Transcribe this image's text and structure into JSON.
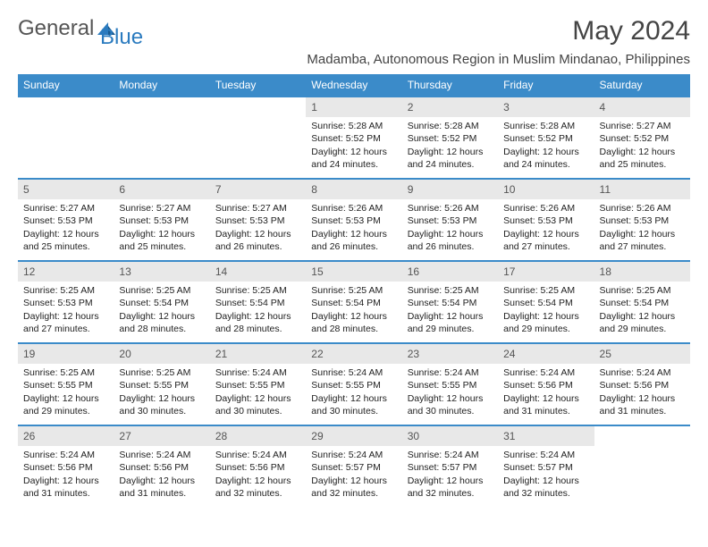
{
  "logo": {
    "text1": "General",
    "text2": "Blue"
  },
  "title": "May 2024",
  "subtitle": "Madamba, Autonomous Region in Muslim Mindanao, Philippines",
  "colors": {
    "header_bg": "#3b8bc9",
    "daynum_bg": "#e8e8e8",
    "border": "#3b8bc9"
  },
  "weekdays": [
    "Sunday",
    "Monday",
    "Tuesday",
    "Wednesday",
    "Thursday",
    "Friday",
    "Saturday"
  ],
  "weeks": [
    [
      {
        "n": "",
        "sr": "",
        "ss": "",
        "dl": ""
      },
      {
        "n": "",
        "sr": "",
        "ss": "",
        "dl": ""
      },
      {
        "n": "",
        "sr": "",
        "ss": "",
        "dl": ""
      },
      {
        "n": "1",
        "sr": "Sunrise: 5:28 AM",
        "ss": "Sunset: 5:52 PM",
        "dl": "Daylight: 12 hours and 24 minutes."
      },
      {
        "n": "2",
        "sr": "Sunrise: 5:28 AM",
        "ss": "Sunset: 5:52 PM",
        "dl": "Daylight: 12 hours and 24 minutes."
      },
      {
        "n": "3",
        "sr": "Sunrise: 5:28 AM",
        "ss": "Sunset: 5:52 PM",
        "dl": "Daylight: 12 hours and 24 minutes."
      },
      {
        "n": "4",
        "sr": "Sunrise: 5:27 AM",
        "ss": "Sunset: 5:52 PM",
        "dl": "Daylight: 12 hours and 25 minutes."
      }
    ],
    [
      {
        "n": "5",
        "sr": "Sunrise: 5:27 AM",
        "ss": "Sunset: 5:53 PM",
        "dl": "Daylight: 12 hours and 25 minutes."
      },
      {
        "n": "6",
        "sr": "Sunrise: 5:27 AM",
        "ss": "Sunset: 5:53 PM",
        "dl": "Daylight: 12 hours and 25 minutes."
      },
      {
        "n": "7",
        "sr": "Sunrise: 5:27 AM",
        "ss": "Sunset: 5:53 PM",
        "dl": "Daylight: 12 hours and 26 minutes."
      },
      {
        "n": "8",
        "sr": "Sunrise: 5:26 AM",
        "ss": "Sunset: 5:53 PM",
        "dl": "Daylight: 12 hours and 26 minutes."
      },
      {
        "n": "9",
        "sr": "Sunrise: 5:26 AM",
        "ss": "Sunset: 5:53 PM",
        "dl": "Daylight: 12 hours and 26 minutes."
      },
      {
        "n": "10",
        "sr": "Sunrise: 5:26 AM",
        "ss": "Sunset: 5:53 PM",
        "dl": "Daylight: 12 hours and 27 minutes."
      },
      {
        "n": "11",
        "sr": "Sunrise: 5:26 AM",
        "ss": "Sunset: 5:53 PM",
        "dl": "Daylight: 12 hours and 27 minutes."
      }
    ],
    [
      {
        "n": "12",
        "sr": "Sunrise: 5:25 AM",
        "ss": "Sunset: 5:53 PM",
        "dl": "Daylight: 12 hours and 27 minutes."
      },
      {
        "n": "13",
        "sr": "Sunrise: 5:25 AM",
        "ss": "Sunset: 5:54 PM",
        "dl": "Daylight: 12 hours and 28 minutes."
      },
      {
        "n": "14",
        "sr": "Sunrise: 5:25 AM",
        "ss": "Sunset: 5:54 PM",
        "dl": "Daylight: 12 hours and 28 minutes."
      },
      {
        "n": "15",
        "sr": "Sunrise: 5:25 AM",
        "ss": "Sunset: 5:54 PM",
        "dl": "Daylight: 12 hours and 28 minutes."
      },
      {
        "n": "16",
        "sr": "Sunrise: 5:25 AM",
        "ss": "Sunset: 5:54 PM",
        "dl": "Daylight: 12 hours and 29 minutes."
      },
      {
        "n": "17",
        "sr": "Sunrise: 5:25 AM",
        "ss": "Sunset: 5:54 PM",
        "dl": "Daylight: 12 hours and 29 minutes."
      },
      {
        "n": "18",
        "sr": "Sunrise: 5:25 AM",
        "ss": "Sunset: 5:54 PM",
        "dl": "Daylight: 12 hours and 29 minutes."
      }
    ],
    [
      {
        "n": "19",
        "sr": "Sunrise: 5:25 AM",
        "ss": "Sunset: 5:55 PM",
        "dl": "Daylight: 12 hours and 29 minutes."
      },
      {
        "n": "20",
        "sr": "Sunrise: 5:25 AM",
        "ss": "Sunset: 5:55 PM",
        "dl": "Daylight: 12 hours and 30 minutes."
      },
      {
        "n": "21",
        "sr": "Sunrise: 5:24 AM",
        "ss": "Sunset: 5:55 PM",
        "dl": "Daylight: 12 hours and 30 minutes."
      },
      {
        "n": "22",
        "sr": "Sunrise: 5:24 AM",
        "ss": "Sunset: 5:55 PM",
        "dl": "Daylight: 12 hours and 30 minutes."
      },
      {
        "n": "23",
        "sr": "Sunrise: 5:24 AM",
        "ss": "Sunset: 5:55 PM",
        "dl": "Daylight: 12 hours and 30 minutes."
      },
      {
        "n": "24",
        "sr": "Sunrise: 5:24 AM",
        "ss": "Sunset: 5:56 PM",
        "dl": "Daylight: 12 hours and 31 minutes."
      },
      {
        "n": "25",
        "sr": "Sunrise: 5:24 AM",
        "ss": "Sunset: 5:56 PM",
        "dl": "Daylight: 12 hours and 31 minutes."
      }
    ],
    [
      {
        "n": "26",
        "sr": "Sunrise: 5:24 AM",
        "ss": "Sunset: 5:56 PM",
        "dl": "Daylight: 12 hours and 31 minutes."
      },
      {
        "n": "27",
        "sr": "Sunrise: 5:24 AM",
        "ss": "Sunset: 5:56 PM",
        "dl": "Daylight: 12 hours and 31 minutes."
      },
      {
        "n": "28",
        "sr": "Sunrise: 5:24 AM",
        "ss": "Sunset: 5:56 PM",
        "dl": "Daylight: 12 hours and 32 minutes."
      },
      {
        "n": "29",
        "sr": "Sunrise: 5:24 AM",
        "ss": "Sunset: 5:57 PM",
        "dl": "Daylight: 12 hours and 32 minutes."
      },
      {
        "n": "30",
        "sr": "Sunrise: 5:24 AM",
        "ss": "Sunset: 5:57 PM",
        "dl": "Daylight: 12 hours and 32 minutes."
      },
      {
        "n": "31",
        "sr": "Sunrise: 5:24 AM",
        "ss": "Sunset: 5:57 PM",
        "dl": "Daylight: 12 hours and 32 minutes."
      },
      {
        "n": "",
        "sr": "",
        "ss": "",
        "dl": ""
      }
    ]
  ]
}
